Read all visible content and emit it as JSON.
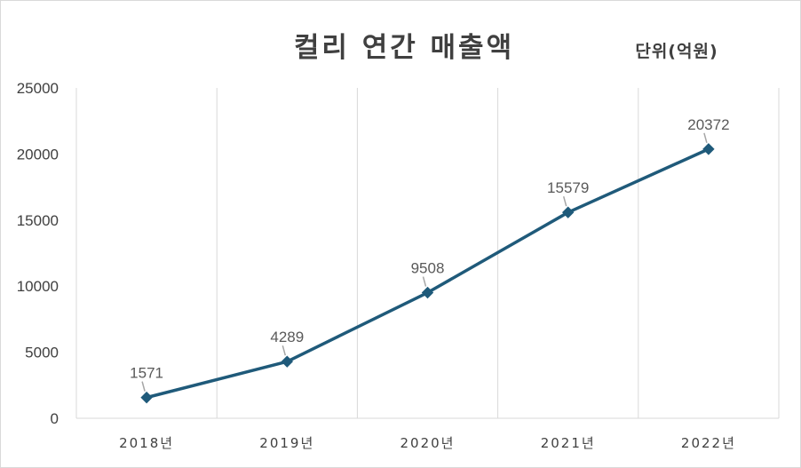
{
  "chart_data": {
    "type": "line",
    "title": "컬리 연간 매출액",
    "unit_label": "단위(억원)",
    "categories": [
      "2018년",
      "2019년",
      "2020년",
      "2021년",
      "2022년"
    ],
    "series": [
      {
        "values": [
          1571,
          4289,
          9508,
          15579,
          20372
        ]
      }
    ],
    "ylim": [
      0,
      25000
    ],
    "yticks": [
      "0",
      "5000",
      "10000",
      "15000",
      "20000",
      "25000"
    ],
    "data_labels": [
      "1571",
      "4289",
      "9508",
      "15579",
      "20372"
    ],
    "grid": "vertical",
    "line_color": "#1f5a7a",
    "marker": "diamond"
  }
}
